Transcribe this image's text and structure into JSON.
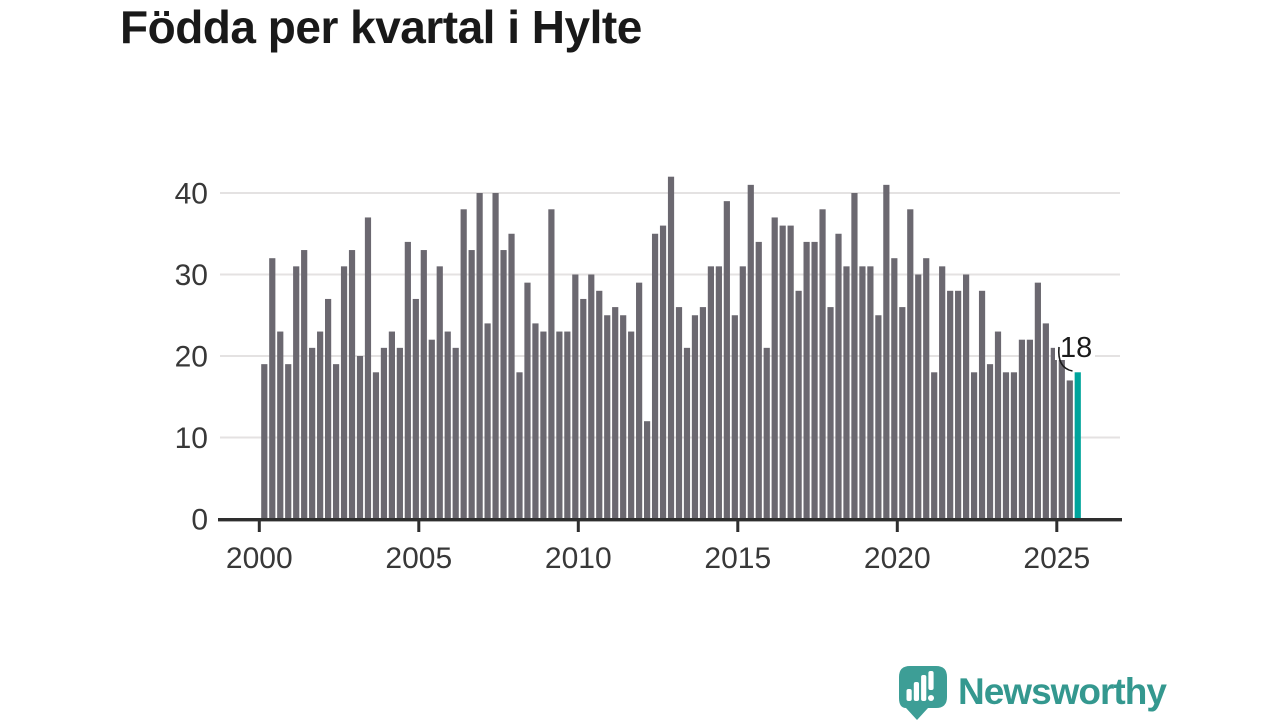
{
  "title": "Födda per kvartal i Hylte",
  "annotation": {
    "label": "18"
  },
  "logo": {
    "text": "Newsworthy"
  },
  "colors": {
    "background": "#ffffff",
    "bar": "#6b6870",
    "bar_highlight": "#00a49c",
    "gridline": "#e4e2e2",
    "axis": "#2e2e2e",
    "tick_label": "#383838",
    "title": "#191919",
    "annotation": "#1b1b1b",
    "logo_teal": "#3d9e96",
    "logo_text": "#34988f"
  },
  "chart_data": {
    "type": "bar",
    "title": "Födda per kvartal i Hylte",
    "xlabel": "",
    "ylabel": "",
    "unit": "födda per kvartal (births per quarter)",
    "start": "2000-Q1",
    "end": "2025-Q3",
    "frequency": "quarterly",
    "x_tick_labels": [
      "2000",
      "2005",
      "2010",
      "2015",
      "2020",
      "2025"
    ],
    "y_ticks": [
      0,
      10,
      20,
      30,
      40
    ],
    "ylim": [
      0,
      44
    ],
    "grid": "horizontal",
    "highlight_last": true,
    "last_value_label": "18",
    "series": [
      {
        "name": "Födda",
        "values_by_year": {
          "2000": [
            19,
            32,
            23,
            19
          ],
          "2001": [
            31,
            33,
            21,
            23
          ],
          "2002": [
            27,
            19,
            31,
            33
          ],
          "2003": [
            20,
            37,
            18,
            21
          ],
          "2004": [
            23,
            21,
            34,
            27
          ],
          "2005": [
            33,
            22,
            31,
            23
          ],
          "2006": [
            21,
            38,
            33,
            40
          ],
          "2007": [
            24,
            40,
            33,
            35
          ],
          "2008": [
            18,
            29,
            24,
            23
          ],
          "2009": [
            38,
            23,
            23,
            30
          ],
          "2010": [
            27,
            30,
            28,
            25
          ],
          "2011": [
            26,
            25,
            23,
            29
          ],
          "2012": [
            12,
            35,
            36,
            42
          ],
          "2013": [
            26,
            21,
            25,
            26
          ],
          "2014": [
            31,
            31,
            39,
            25
          ],
          "2015": [
            31,
            41,
            34,
            21
          ],
          "2016": [
            37,
            36,
            36,
            28
          ],
          "2017": [
            34,
            34,
            38,
            26
          ],
          "2018": [
            35,
            31,
            40,
            31
          ],
          "2019": [
            31,
            25,
            41,
            32
          ],
          "2020": [
            26,
            38,
            30,
            32
          ],
          "2021": [
            18,
            31,
            28,
            28
          ],
          "2022": [
            30,
            18,
            28,
            19
          ],
          "2023": [
            23,
            18,
            18,
            22
          ],
          "2024": [
            22,
            29,
            24,
            21
          ],
          "2025": [
            22,
            17,
            18
          ]
        }
      }
    ]
  }
}
